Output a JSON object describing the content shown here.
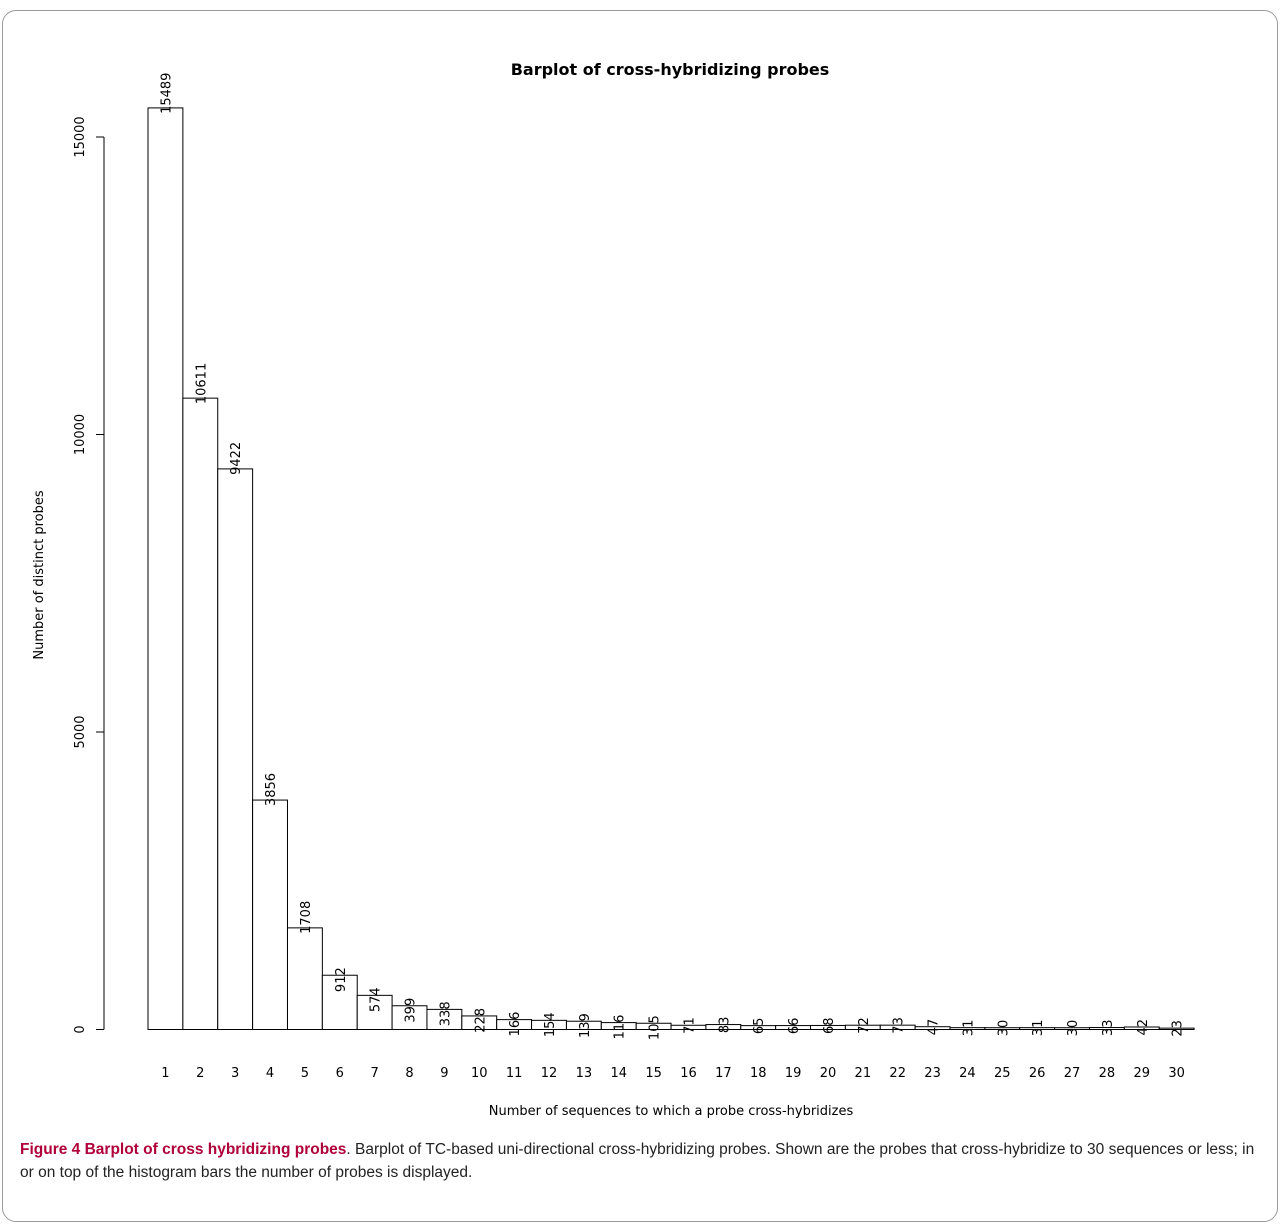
{
  "chart_data": {
    "type": "bar",
    "title": "Barplot of cross-hybridizing probes",
    "xlabel": "Number of sequences to which a probe cross-hybridizes",
    "ylabel": "Number of distinct probes",
    "categories": [
      "1",
      "2",
      "3",
      "4",
      "5",
      "6",
      "7",
      "8",
      "9",
      "10",
      "11",
      "12",
      "13",
      "14",
      "15",
      "16",
      "17",
      "18",
      "19",
      "20",
      "21",
      "22",
      "23",
      "24",
      "25",
      "26",
      "27",
      "28",
      "29",
      "30"
    ],
    "values": [
      15489,
      10611,
      9422,
      3856,
      1708,
      912,
      574,
      399,
      338,
      228,
      166,
      154,
      139,
      116,
      105,
      71,
      83,
      65,
      66,
      68,
      72,
      73,
      47,
      31,
      30,
      31,
      30,
      33,
      42,
      23
    ],
    "yticks": [
      "0",
      "5000",
      "10000",
      "15000"
    ],
    "ylim": [
      0,
      15500
    ],
    "bar_fill": "#ffffff",
    "bar_stroke": "#000000"
  },
  "caption": {
    "head": "Figure 4 Barplot of cross hybridizing probes",
    "body": ". Barplot of TC-based uni-directional cross-hybridizing probes. Shown are the probes that cross-hybridize to 30 sequences or less; in or on top of the histogram bars the number of probes is displayed.",
    "head_color": "#b0003a"
  }
}
